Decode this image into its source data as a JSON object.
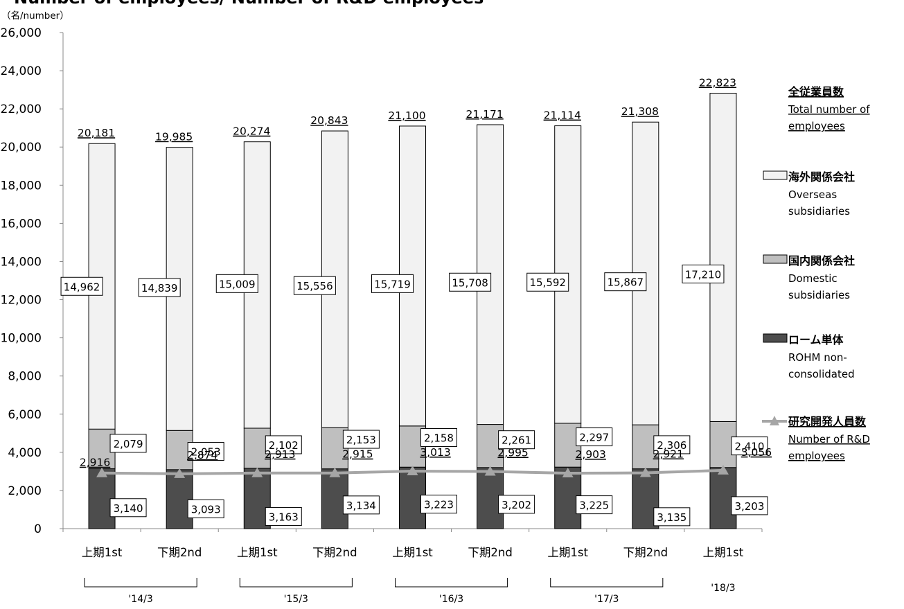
{
  "title": "Number of employees/ Number of R&D employees",
  "unit_label": "（名/number）",
  "colors": {
    "overseas": "#f2f2f2",
    "domestic": "#bfbfbf",
    "rohm": "#4d4d4d",
    "rd_line": "#a6a6a6",
    "outline": "#000000"
  },
  "year_groups": [
    {
      "label": "'14/3"
    },
    {
      "label": "'15/3"
    },
    {
      "label": "'16/3"
    },
    {
      "label": "'17/3"
    },
    {
      "label": "'18/3"
    }
  ],
  "legend": [
    {
      "ja": "全従業員数",
      "en_lines": [
        "Total number of",
        "employees"
      ],
      "swatch": "none",
      "underline": true
    },
    {
      "ja": "海外関係会社",
      "en_lines": [
        "Overseas",
        "subsidiaries"
      ],
      "swatch": "overseas",
      "underline": false
    },
    {
      "ja": "国内関係会社",
      "en_lines": [
        "Domestic",
        "subsidiaries"
      ],
      "swatch": "domestic",
      "underline": false
    },
    {
      "ja": "ローム単体",
      "en_lines": [
        "ROHM non-",
        "consolidated"
      ],
      "swatch": "rohm",
      "underline": false
    },
    {
      "ja": "研究開発人員数",
      "en_lines": [
        "Number of R&D",
        "employees"
      ],
      "swatch": "line",
      "underline": true
    }
  ],
  "chart_data": {
    "type": "bar",
    "stacked": true,
    "categories": [
      "上期1st",
      "下期2nd",
      "上期1st",
      "下期2nd",
      "上期1st",
      "下期2nd",
      "上期1st",
      "下期2nd",
      "上期1st"
    ],
    "ylim": [
      0,
      26000
    ],
    "yticks": [
      "0",
      "2,000",
      "4,000",
      "6,000",
      "8,000",
      "10,000",
      "12,000",
      "14,000",
      "16,000",
      "18,000",
      "20,000",
      "22,000",
      "24,000",
      "26,000"
    ],
    "series": [
      {
        "name": "ROHM non-consolidated",
        "values": [
          3140,
          3093,
          3163,
          3134,
          3223,
          3202,
          3225,
          3135,
          3203
        ],
        "labels": [
          "3,140",
          "3,093",
          "3,163",
          "3,134",
          "3,223",
          "3,202",
          "3,225",
          "3,135",
          "3,203"
        ]
      },
      {
        "name": "Domestic subsidiaries",
        "values": [
          2079,
          2053,
          2102,
          2153,
          2158,
          2261,
          2297,
          2306,
          2410
        ],
        "labels": [
          "2,079",
          "2,053",
          "2,102",
          "2,153",
          "2,158",
          "2,261",
          "2,297",
          "2,306",
          "2,410"
        ]
      },
      {
        "name": "Overseas subsidiaries",
        "values": [
          14962,
          14839,
          15009,
          15556,
          15719,
          15708,
          15592,
          15867,
          17210
        ],
        "labels": [
          "14,962",
          "14,839",
          "15,009",
          "15,556",
          "15,719",
          "15,708",
          "15,592",
          "15,867",
          "17,210"
        ]
      }
    ],
    "totals": [
      20181,
      19985,
      20274,
      20843,
      21100,
      21171,
      21114,
      21308,
      22823
    ],
    "total_labels": [
      "20,181",
      "19,985",
      "20,274",
      "20,843",
      "21,100",
      "21,171",
      "21,114",
      "21,308",
      "22,823"
    ],
    "rd_line": {
      "name": "Number of R&D employees",
      "values": [
        2916,
        2874,
        2913,
        2915,
        3013,
        2995,
        2903,
        2921,
        3056
      ],
      "labels": [
        "2,916",
        "2,874",
        "2,913",
        "2,915",
        "3,013",
        "2,995",
        "2,903",
        "2,921",
        "3,056"
      ]
    }
  }
}
